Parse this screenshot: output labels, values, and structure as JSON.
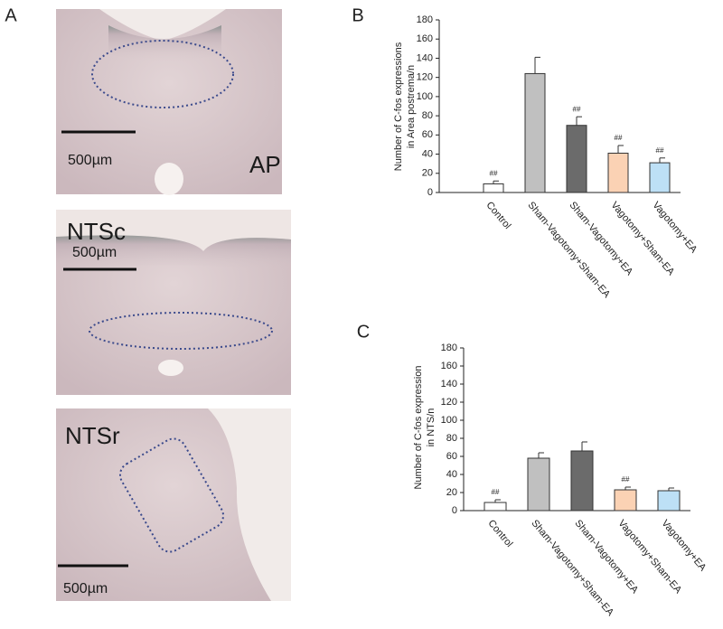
{
  "panel_labels": [
    "A",
    "B",
    "C"
  ],
  "micrographs": [
    {
      "label": "AP",
      "scale_bar": "500µm"
    },
    {
      "label": "NTSc",
      "scale_bar": "500µm"
    },
    {
      "label": "NTSr",
      "scale_bar": "500µm"
    }
  ],
  "chart_data": [
    {
      "type": "bar",
      "y_label": [
        "Number of C-fos expressions",
        "in Area postrema/n"
      ],
      "categories": [
        "Control",
        "Sham-Vagotomy+Sham-EA",
        "Sham-Vagotomy+EA",
        "Vagotomy+Sham-EA",
        "Vagotomy+EA"
      ],
      "series": [
        {
          "values": [
            9,
            124,
            70,
            41,
            31
          ],
          "errors": [
            3,
            17,
            9,
            8,
            5
          ],
          "colors": [
            "#ffffff",
            "#c0c0c0",
            "#6b6b6b",
            "#fbd2b4",
            "#bde0f6"
          ]
        }
      ],
      "significance": [
        "##",
        null,
        "##",
        "##",
        "##"
      ],
      "ylim": [
        0,
        180
      ],
      "yticks": [
        0,
        20,
        40,
        60,
        80,
        100,
        120,
        140,
        160,
        180
      ]
    },
    {
      "type": "bar",
      "y_label": [
        "Number of C-fos expression",
        "in NTS/n"
      ],
      "categories": [
        "Control",
        "Sham-Vagotomy+Sham-EA",
        "Sham-Vagotomy+EA",
        "Vagotomy+Sham-EA",
        "Vagotomy+EA"
      ],
      "series": [
        {
          "values": [
            9,
            58,
            66,
            23,
            22
          ],
          "errors": [
            3,
            6,
            10,
            3,
            3
          ],
          "colors": [
            "#ffffff",
            "#c0c0c0",
            "#6b6b6b",
            "#fbd2b4",
            "#bde0f6"
          ]
        }
      ],
      "significance": [
        "##",
        null,
        null,
        "##",
        null
      ],
      "ylim": [
        0,
        180
      ],
      "yticks": [
        0,
        20,
        40,
        60,
        80,
        100,
        120,
        140,
        160,
        180
      ]
    }
  ]
}
